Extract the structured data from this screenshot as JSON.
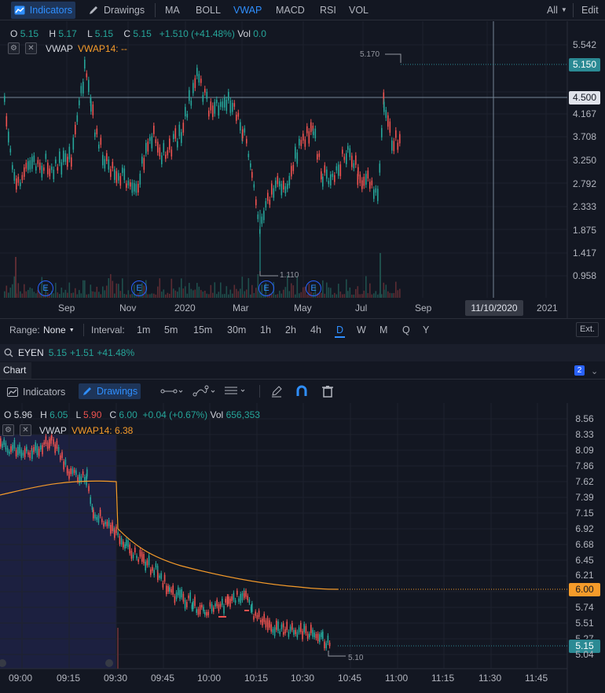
{
  "top_toolbar": {
    "indicators": "Indicators",
    "drawings": "Drawings",
    "studies": [
      "MA",
      "BOLL",
      "VWAP",
      "MACD",
      "RSI",
      "VOL"
    ],
    "active_study": "VWAP",
    "all": "All",
    "edit": "Edit"
  },
  "chart1": {
    "ohlc": {
      "o_label": "O",
      "o": "5.15",
      "h_label": "H",
      "h": "5.17",
      "l_label": "L",
      "l": "5.15",
      "c_label": "C",
      "c": "5.15",
      "change": "+1.510 (+41.48%)",
      "vol_label": "Vol",
      "vol": "0.0"
    },
    "indicator": {
      "name": "VWAP",
      "value": "VWAP14: --"
    },
    "price_axis": [
      "5.542",
      "5.150",
      "4.500",
      "4.167",
      "3.708",
      "3.250",
      "2.792",
      "2.333",
      "1.875",
      "1.417",
      "0.958"
    ],
    "last_price_tag": "5.150",
    "crosshair_tag": "4.500",
    "high_marker": "5.170",
    "low_marker": "1.110",
    "time_axis": [
      "Sep",
      "Nov",
      "2020",
      "Mar",
      "May",
      "Jul",
      "Sep",
      "11/10/2020",
      "2021"
    ],
    "earnings_marker": "E",
    "colors": {
      "up": "#26a69a",
      "down": "#ef5350",
      "accent": "#2962ff",
      "last": "#2b8a94"
    }
  },
  "range_bar": {
    "range_label": "Range:",
    "range_value": "None",
    "interval_label": "Interval:",
    "intervals": [
      "1m",
      "5m",
      "15m",
      "30m",
      "1h",
      "2h",
      "4h",
      "D",
      "W",
      "M",
      "Q",
      "Y"
    ],
    "active_interval": "D",
    "ext": "Ext."
  },
  "symbol_bar": {
    "symbol": "EYEN",
    "price": "5.15",
    "change": "+1.51",
    "percent": "+41.48%"
  },
  "chart2_tab": {
    "label": "Chart",
    "badge": "2"
  },
  "chart2_toolbar": {
    "indicators": "Indicators",
    "drawings": "Drawings"
  },
  "chart2": {
    "ohlc": {
      "o_label": "O",
      "o": "5.96",
      "h_label": "H",
      "h": "6.05",
      "l_label": "L",
      "l": "5.90",
      "c_label": "C",
      "c": "6.00",
      "change": "+0.04 (+0.67%)",
      "vol_label": "Vol",
      "vol": "656,353"
    },
    "indicator": {
      "name": "VWAP",
      "value": "VWAP14: 6.38"
    },
    "price_axis": [
      "8.56",
      "8.33",
      "8.09",
      "7.86",
      "7.62",
      "7.39",
      "7.15",
      "6.92",
      "6.68",
      "6.45",
      "6.21",
      "6.00",
      "5.74",
      "5.51",
      "5.27",
      "5.15",
      "5.04"
    ],
    "vwap_tag": "6.00",
    "last_price_tag": "5.15",
    "low_marker": "5.10",
    "time_axis": [
      "09:00",
      "09:15",
      "09:30",
      "09:45",
      "10:00",
      "10:15",
      "10:30",
      "10:45",
      "11:00",
      "11:15",
      "11:30",
      "11:45"
    ],
    "colors": {
      "up": "#26a69a",
      "down": "#ef5350",
      "vwap": "#f59b2a",
      "premarket": "#1c2040"
    }
  }
}
